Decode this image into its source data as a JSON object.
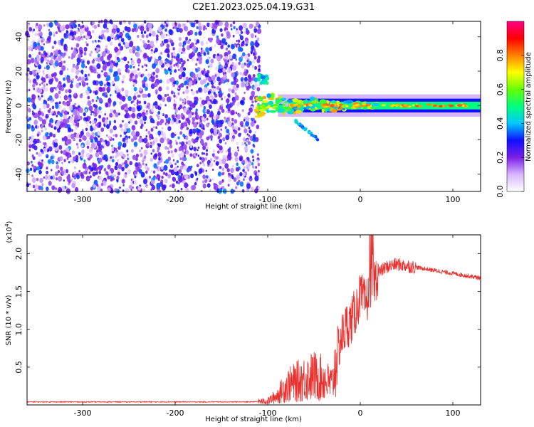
{
  "title": "C2E1.2023.025.04.19.G31",
  "chart_data": [
    {
      "type": "heatmap",
      "title": "C2E1.2023.025.04.19.G31",
      "xlabel": "Height of straight line (km)",
      "ylabel": "Frequency (Hz)",
      "xlim": [
        -360,
        130
      ],
      "ylim": [
        -50,
        49
      ],
      "x_ticks": [
        "-300",
        "-200",
        "-100",
        "0",
        "100"
      ],
      "y_ticks": [
        "-40",
        "-20",
        "0",
        "20",
        "40"
      ],
      "colorbar": {
        "label": "Normalized spectral amplitude",
        "range": [
          0,
          1
        ],
        "ticks": [
          "0.0",
          "0.2",
          "0.4",
          "0.6",
          "0.8"
        ],
        "colors": [
          "#ffffff",
          "#d9b6ff",
          "#7a1fe6",
          "#1010ff",
          "#00c8ff",
          "#00ff7f",
          "#66ff00",
          "#ffff00",
          "#ff8000",
          "#ff0000",
          "#ff0088"
        ]
      },
      "features": {
        "noise_region_x": [
          -360,
          -112
        ],
        "noise_level": 0.35,
        "signal_band_x": [
          -112,
          130
        ],
        "signal_center_hz": 0,
        "signal_halfwidth_hz": 2.5,
        "signal_peak_amplitude": 0.85,
        "upper_echo": {
          "x": [
            -110,
            -100
          ],
          "y_hz": [
            13,
            18
          ],
          "amplitude": 0.35
        },
        "lower_echo": {
          "x": [
            -70,
            -45
          ],
          "y_hz": [
            -9,
            -20
          ],
          "amplitude": 0.3
        }
      }
    },
    {
      "type": "line",
      "xlabel": "Height of straight line (km)",
      "ylabel": "SNR (10 * v/v)",
      "multiplier": "(x10",
      "multiplier_exp": "4",
      "xlim": [
        -360,
        130
      ],
      "ylim": [
        0,
        22500
      ],
      "x_ticks": [
        "-300",
        "-200",
        "-100",
        "0",
        "100"
      ],
      "y_ticks": [
        "0.5",
        "1.0",
        "1.5",
        "2.0"
      ],
      "series": [
        {
          "color": "#e8302e",
          "x": [
            -360,
            -300,
            -200,
            -120,
            -100,
            -90,
            -80,
            -70,
            -60,
            -50,
            -40,
            -35,
            -30,
            -25,
            -20,
            -15,
            -10,
            -5,
            0,
            5,
            10,
            12,
            15,
            20,
            25,
            30,
            35,
            40,
            50,
            60,
            70,
            80,
            90,
            100,
            110,
            120,
            130
          ],
          "y": [
            400,
            400,
            400,
            400,
            500,
            1200,
            2500,
            3000,
            3500,
            3800,
            3500,
            3000,
            2800,
            7000,
            9000,
            10500,
            11000,
            12500,
            14500,
            13500,
            14500,
            17000,
            16500,
            17500,
            18000,
            18300,
            18500,
            18600,
            18400,
            18200,
            18000,
            17800,
            17600,
            17400,
            17200,
            17000,
            16800
          ]
        }
      ]
    }
  ]
}
